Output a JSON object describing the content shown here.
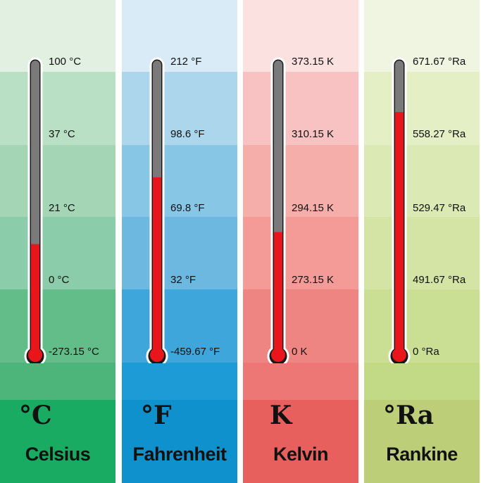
{
  "scales": [
    {
      "symbol": "°C",
      "name": "Celsius",
      "ticks": [
        "100 °C",
        "37 °C",
        "21 °C",
        "0 °C",
        "-273.15 °C"
      ],
      "fill_fraction": 0.382,
      "colors": [
        "#e2f0e1",
        "#b9e0c5",
        "#a4d6b6",
        "#8bccaa",
        "#62bd89",
        "#4db57a",
        "#19ab61"
      ]
    },
    {
      "symbol": "°F",
      "name": "Fahrenheit",
      "ticks": [
        "212 °F",
        "98.6 °F",
        "69.8 °F",
        "32 °F",
        "-459.67 °F"
      ],
      "fill_fraction": 0.612,
      "colors": [
        "#d8ebf6",
        "#acd6ec",
        "#88c6e6",
        "#6cb8e1",
        "#3fa6db",
        "#1d9bd6",
        "#0f91cd"
      ]
    },
    {
      "symbol": "K",
      "name": "Kelvin",
      "ticks": [
        "373.15 K",
        "310.15 K",
        "294.15 K",
        "273.15 K",
        "0 K"
      ],
      "fill_fraction": 0.423,
      "colors": [
        "#fce1e1",
        "#f8c2c2",
        "#f6aeab",
        "#f49b98",
        "#ef8582",
        "#ec7775",
        "#e8605e"
      ]
    },
    {
      "symbol": "°Ra",
      "name": "Rankine",
      "ticks": [
        "671.67 °Ra",
        "558.27 °Ra",
        "529.47 °Ra",
        "491.67 °Ra",
        "0 °Ra"
      ],
      "fill_fraction": 0.837,
      "colors": [
        "#eff5e1",
        "#e4efc6",
        "#dbe9b4",
        "#d3e4a4",
        "#cadf94",
        "#c2d985",
        "#bccf78"
      ]
    }
  ],
  "tube_color": "#7a7a7a",
  "mercury_color": "#e8161b"
}
